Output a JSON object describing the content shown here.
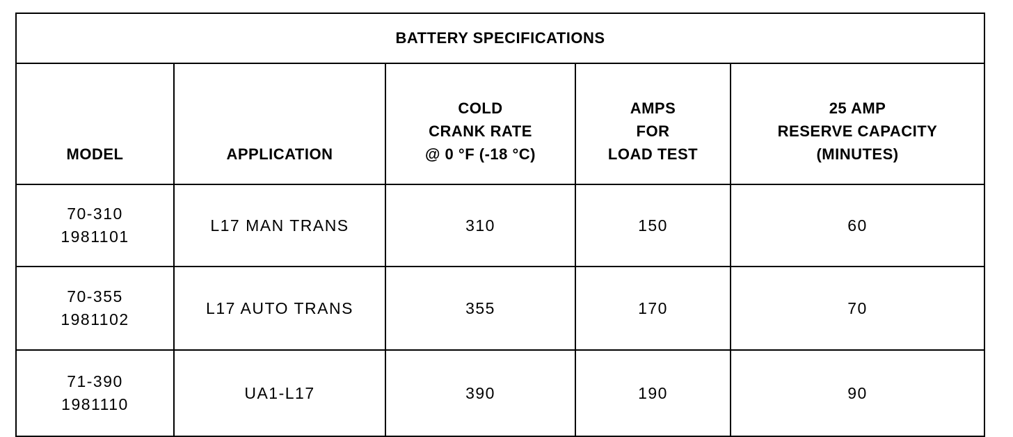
{
  "table": {
    "title": "BATTERY SPECIFICATIONS",
    "header": [
      [
        "MODEL"
      ],
      [
        "APPLICATION"
      ],
      [
        "COLD",
        "CRANK RATE",
        "@ 0 °F (-18 °C)"
      ],
      [
        "AMPS",
        "FOR",
        "LOAD TEST"
      ],
      [
        "25 AMP",
        "RESERVE CAPACITY",
        "(MINUTES)"
      ]
    ],
    "rows": [
      [
        [
          "70-310",
          "1981101"
        ],
        [
          "L17 MAN TRANS"
        ],
        [
          310
        ],
        [
          150
        ],
        [
          60
        ]
      ],
      [
        [
          "70-355",
          "1981102"
        ],
        [
          "L17 AUTO TRANS"
        ],
        [
          355
        ],
        [
          170
        ],
        [
          70
        ]
      ],
      [
        [
          "71-390",
          "1981110"
        ],
        [
          "UA1-L17"
        ],
        [
          390
        ],
        [
          190
        ],
        [
          90
        ]
      ]
    ]
  }
}
